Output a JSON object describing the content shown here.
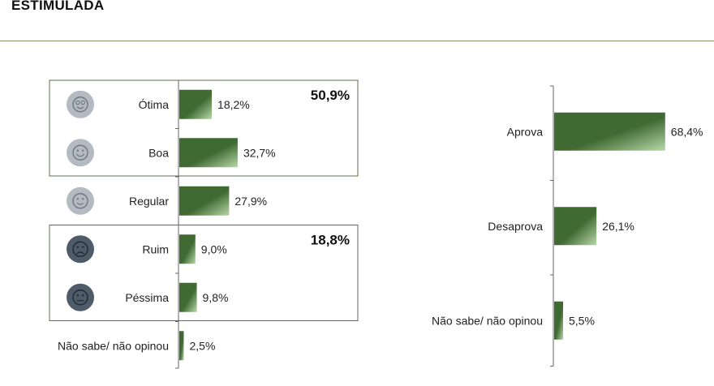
{
  "header": {
    "title": "ESTIMULADA"
  },
  "colors": {
    "bar_dark": "#3f6a32",
    "bar_light": "#b9d7a8",
    "group_border": "#5b6f49",
    "face_light": "#b3bac1",
    "face_dark": "#4f5b68",
    "axis": "#666666"
  },
  "chart_data": [
    {
      "type": "bar",
      "orientation": "horizontal",
      "categories": [
        "Ótima",
        "Boa",
        "Regular",
        "Ruim",
        "Péssima",
        "Não sabe/ não opinou"
      ],
      "values": [
        18.2,
        32.7,
        27.9,
        9.0,
        9.8,
        2.5
      ],
      "value_labels": [
        "18,2%",
        "32,7%",
        "27,9%",
        "9,0%",
        "9,8%",
        "2,5%"
      ],
      "icons": [
        "star-eyes-face-icon",
        "smiling-face-icon",
        "slight-smile-face-icon",
        "frowning-face-icon",
        "neutral-face-icon",
        ""
      ],
      "groups": [
        {
          "label": "50,9%",
          "categories": [
            "Ótima",
            "Boa"
          ]
        },
        {
          "label": "18,8%",
          "categories": [
            "Ruim",
            "Péssima"
          ]
        }
      ],
      "xlim": [
        0,
        100
      ]
    },
    {
      "type": "bar",
      "orientation": "horizontal",
      "categories": [
        "Aprova",
        "Desaprova",
        "Não sabe/ não opinou"
      ],
      "values": [
        68.4,
        26.1,
        5.5
      ],
      "value_labels": [
        "68,4%",
        "26,1%",
        "5,5%"
      ],
      "xlim": [
        0,
        100
      ]
    }
  ]
}
